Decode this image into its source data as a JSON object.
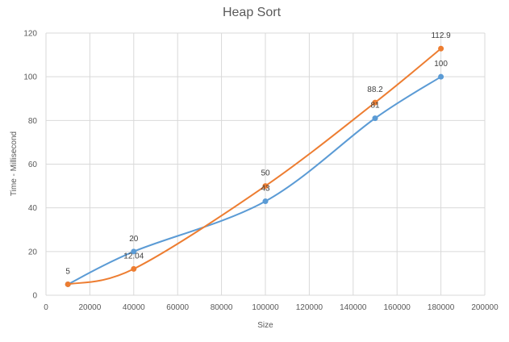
{
  "chart_data": {
    "type": "line",
    "title": "Heap Sort",
    "xlabel": "Size",
    "ylabel": "Time - Millisecond",
    "xlim": [
      0,
      200000
    ],
    "ylim": [
      0,
      120
    ],
    "x_ticks": [
      0,
      20000,
      40000,
      60000,
      80000,
      100000,
      120000,
      140000,
      160000,
      180000,
      200000
    ],
    "y_ticks": [
      0,
      20,
      40,
      60,
      80,
      100,
      120
    ],
    "grid": true,
    "legend": "none",
    "series": [
      {
        "color": "#5B9BD5",
        "x": [
          10000,
          40000,
          100000,
          150000,
          180000
        ],
        "y": [
          5,
          20,
          43,
          81,
          100
        ],
        "labels": [
          "",
          "20",
          "43",
          "81",
          "100"
        ]
      },
      {
        "color": "#ED7D31",
        "x": [
          10000,
          40000,
          100000,
          150000,
          180000
        ],
        "y": [
          5,
          12.04,
          50,
          88.2,
          112.9
        ],
        "labels": [
          "5",
          "12.04",
          "50",
          "88.2",
          "112.9"
        ]
      }
    ]
  }
}
